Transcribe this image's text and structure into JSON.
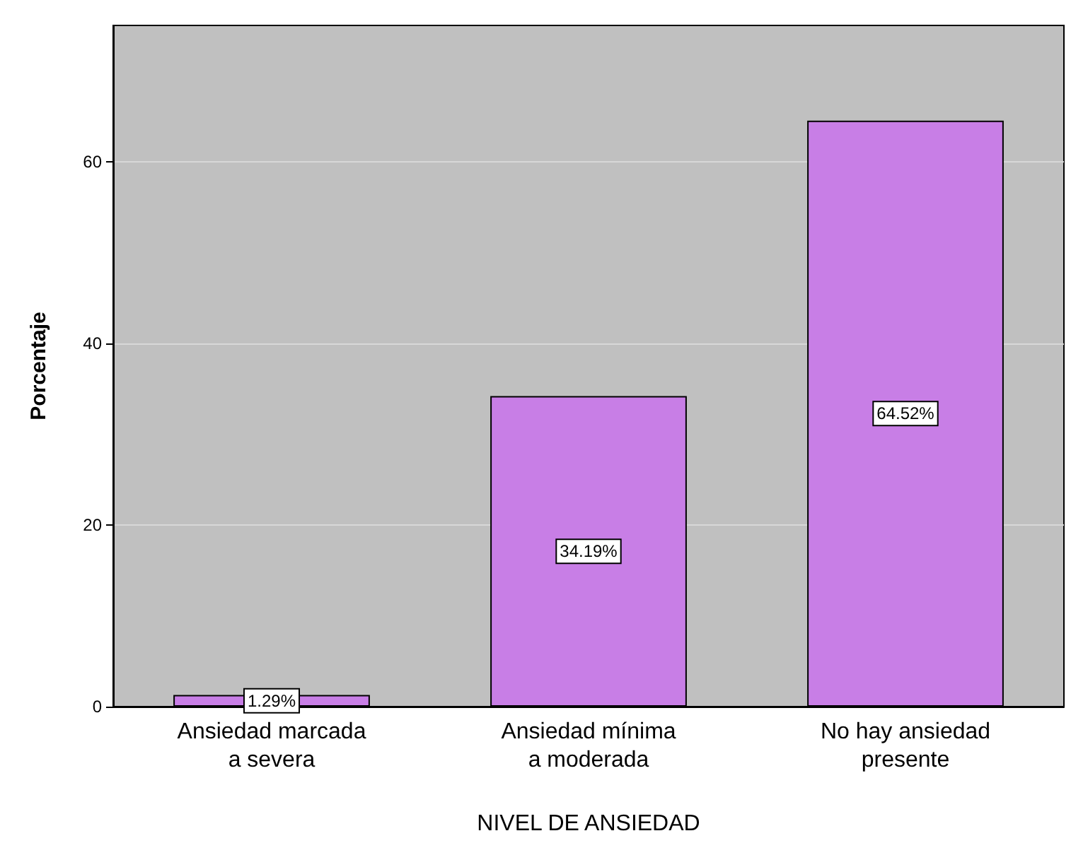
{
  "chart_data": {
    "type": "bar",
    "xlabel": "NIVEL DE ANSIEDAD",
    "ylabel": "Porcentaje",
    "categories": [
      "Ansiedad marcada a severa",
      "Ansiedad mínima a moderada",
      "No hay ansiedad presente"
    ],
    "values": [
      1.29,
      34.19,
      64.52
    ],
    "value_labels": [
      "1.29%",
      "34.19%",
      "64.52%"
    ],
    "color": "#c87ee6",
    "ylim": [
      0,
      75
    ],
    "yticks": [
      0,
      20,
      40,
      60
    ],
    "grid": "y"
  }
}
